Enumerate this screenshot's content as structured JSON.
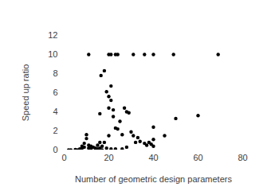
{
  "chart_data": {
    "type": "scatter",
    "x_label": "Number of geometric design parameters",
    "y_label": "Speed up ratio",
    "x": [
      11,
      20,
      21,
      23,
      24,
      31,
      36,
      40,
      49,
      69,
      16.5,
      18,
      19,
      21,
      20,
      21,
      20,
      22,
      27,
      28,
      29,
      16,
      22,
      60,
      50,
      23,
      24,
      40,
      25,
      26,
      30,
      31,
      33,
      45,
      20,
      16,
      18,
      15,
      34,
      36,
      37,
      38,
      39,
      40,
      40,
      28,
      32,
      23,
      26,
      19,
      21,
      2,
      3,
      5,
      6,
      7,
      8,
      8,
      9,
      9,
      10,
      10,
      11,
      11,
      12,
      12,
      13,
      14,
      14,
      15,
      16,
      17,
      17
    ],
    "values": [
      10,
      10,
      10,
      10,
      10,
      10,
      10,
      10,
      10,
      10,
      7.8,
      8.3,
      6.1,
      6.7,
      5.6,
      5.2,
      4.4,
      4.2,
      4.4,
      4.0,
      3.9,
      3.8,
      3.5,
      3.6,
      3.3,
      2.3,
      2.2,
      2.4,
      3.0,
      1.6,
      1.9,
      1.5,
      1.3,
      1.5,
      1.5,
      0.8,
      0.8,
      0.5,
      0.9,
      0.7,
      0.5,
      0.8,
      0.6,
      1.1,
      0.4,
      0.3,
      0.8,
      0.1,
      0.1,
      0.2,
      0.1,
      0,
      0,
      0.05,
      0,
      0.1,
      0.2,
      0.4,
      0.7,
      0.3,
      1.2,
      1.6,
      0.5,
      0.2,
      0.1,
      0.4,
      0.3,
      0.2,
      0,
      0.1,
      0.2,
      0.4,
      0
    ],
    "color": "#000000",
    "marker": "circle",
    "xlim": [
      0,
      80
    ],
    "xticks": [
      0,
      20,
      40,
      60,
      80
    ],
    "ylim": [
      0,
      12
    ],
    "yticks": [
      0,
      2,
      4,
      6,
      8,
      10,
      12
    ],
    "grid": false
  }
}
